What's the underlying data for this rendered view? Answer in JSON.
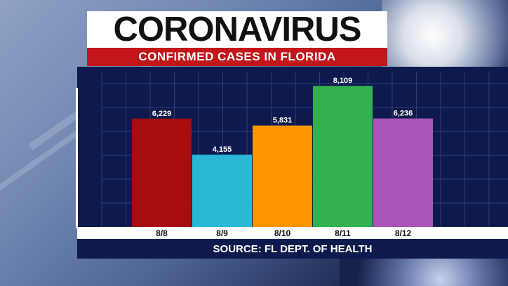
{
  "header": {
    "title": "CORONAVIRUS",
    "subtitle": "CONFIRMED CASES IN FLORIDA"
  },
  "footer": {
    "source": "SOURCE: FL DEPT. OF HEALTH"
  },
  "colors": {
    "title_bg": "#ffffff",
    "subtitle_bg": "#c2161b",
    "panel_bg": "#0e1a4d"
  },
  "chart_data": {
    "type": "bar",
    "categories": [
      "8/8",
      "8/9",
      "8/10",
      "8/11",
      "8/12"
    ],
    "values": [
      6229,
      4155,
      5831,
      8109,
      6236
    ],
    "value_labels": [
      "6,229",
      "4,155",
      "5,831",
      "8,109",
      "6,236"
    ],
    "bar_colors": [
      "#a50d10",
      "#2ab8d6",
      "#ff9500",
      "#33b04f",
      "#a756b8"
    ],
    "title": "",
    "xlabel": "",
    "ylabel": "",
    "grid": true,
    "legend": "none"
  }
}
